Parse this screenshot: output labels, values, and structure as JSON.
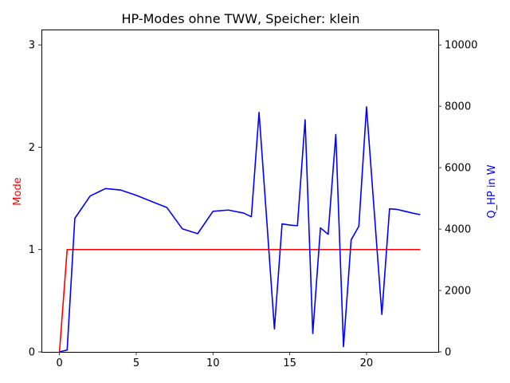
{
  "chart_data": {
    "type": "line",
    "title": "HP-Modes ohne TWW, Speicher: klein",
    "xlabel": "",
    "ylabel_left": "Mode",
    "ylabel_right": "Q_HP in W",
    "xlim": [
      -1.175,
      24.675
    ],
    "ylim_left": [
      0,
      3.15
    ],
    "ylim_right": [
      0,
      10500
    ],
    "x_ticks": [
      0,
      5,
      10,
      15,
      20
    ],
    "y_ticks_left": [
      0,
      1,
      2,
      3
    ],
    "y_ticks_right": [
      0,
      2000,
      4000,
      6000,
      8000,
      10000
    ],
    "grid": false,
    "legend": "none",
    "series": [
      {
        "axis": "left",
        "color": "#ff0000",
        "x": [
          0,
          0.5,
          1,
          1.5,
          2,
          2.5,
          3,
          3.5,
          4,
          4.5,
          5,
          5.5,
          6,
          6.5,
          7,
          7.5,
          8,
          8.5,
          9,
          9.5,
          10,
          10.5,
          11,
          11.5,
          12,
          12.5,
          13,
          13.5,
          14,
          14.5,
          15,
          15.5,
          16,
          16.5,
          17,
          17.5,
          18,
          18.5,
          19,
          19.5,
          20,
          20.5,
          21,
          21.5,
          22,
          22.5,
          23,
          23.5
        ],
        "y": [
          0,
          1,
          1,
          1,
          1,
          1,
          1,
          1,
          1,
          1,
          1,
          1,
          1,
          1,
          1,
          1,
          1,
          1,
          1,
          1,
          1,
          1,
          1,
          1,
          1,
          1,
          1,
          1,
          1,
          1,
          1,
          1,
          1,
          1,
          1,
          1,
          1,
          1,
          1,
          1,
          1,
          1,
          1,
          1,
          1,
          1,
          1,
          1
        ]
      },
      {
        "axis": "right",
        "color": "#0000ff",
        "x": [
          0,
          0.5,
          1,
          2,
          3,
          4,
          5,
          6,
          7,
          8,
          9,
          10,
          11,
          12,
          12.5,
          13,
          13.5,
          14,
          14.5,
          15,
          15.5,
          16,
          16.5,
          17,
          17.5,
          18,
          18.5,
          19,
          19.5,
          20,
          20.5,
          21,
          21.5,
          22,
          23,
          23.5
        ],
        "y": [
          0,
          60,
          4350,
          5080,
          5320,
          5270,
          5100,
          4900,
          4700,
          4010,
          3850,
          4580,
          4620,
          4520,
          4400,
          7800,
          4300,
          750,
          4170,
          4130,
          4110,
          7560,
          600,
          4040,
          3830,
          7080,
          170,
          3650,
          4090,
          7980,
          4600,
          1220,
          4660,
          4640,
          4520,
          4470
        ]
      }
    ]
  }
}
